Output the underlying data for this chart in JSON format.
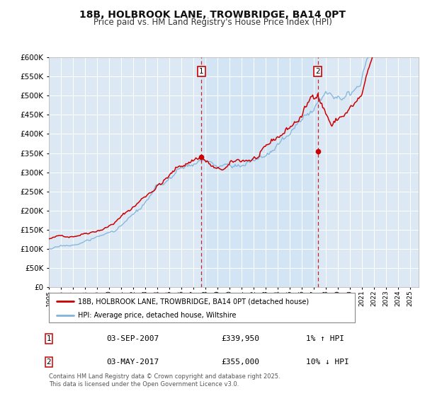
{
  "title": "18B, HOLBROOK LANE, TROWBRIDGE, BA14 0PT",
  "subtitle": "Price paid vs. HM Land Registry's House Price Index (HPI)",
  "background_color": "#dce9f5",
  "ylim": [
    0,
    600000
  ],
  "yticks": [
    0,
    50000,
    100000,
    150000,
    200000,
    250000,
    300000,
    350000,
    400000,
    450000,
    500000,
    550000,
    600000
  ],
  "xlim_start": 1995.0,
  "xlim_end": 2025.7,
  "hpi_color": "#7fb3d9",
  "price_color": "#cc0000",
  "marker1_x": 2007.67,
  "marker1_y": 339950,
  "marker2_x": 2017.33,
  "marker2_y": 355000,
  "vline1_x": 2007.67,
  "vline2_x": 2017.33,
  "legend_label_price": "18B, HOLBROOK LANE, TROWBRIDGE, BA14 0PT (detached house)",
  "legend_label_hpi": "HPI: Average price, detached house, Wiltshire",
  "table_row1": [
    "1",
    "03-SEP-2007",
    "£339,950",
    "1% ↑ HPI"
  ],
  "table_row2": [
    "2",
    "03-MAY-2017",
    "£355,000",
    "10% ↓ HPI"
  ],
  "footer": "Contains HM Land Registry data © Crown copyright and database right 2025.\nThis data is licensed under the Open Government Licence v3.0.",
  "title_fontsize": 10,
  "subtitle_fontsize": 8.5,
  "shade_color": "#d0e4f5"
}
